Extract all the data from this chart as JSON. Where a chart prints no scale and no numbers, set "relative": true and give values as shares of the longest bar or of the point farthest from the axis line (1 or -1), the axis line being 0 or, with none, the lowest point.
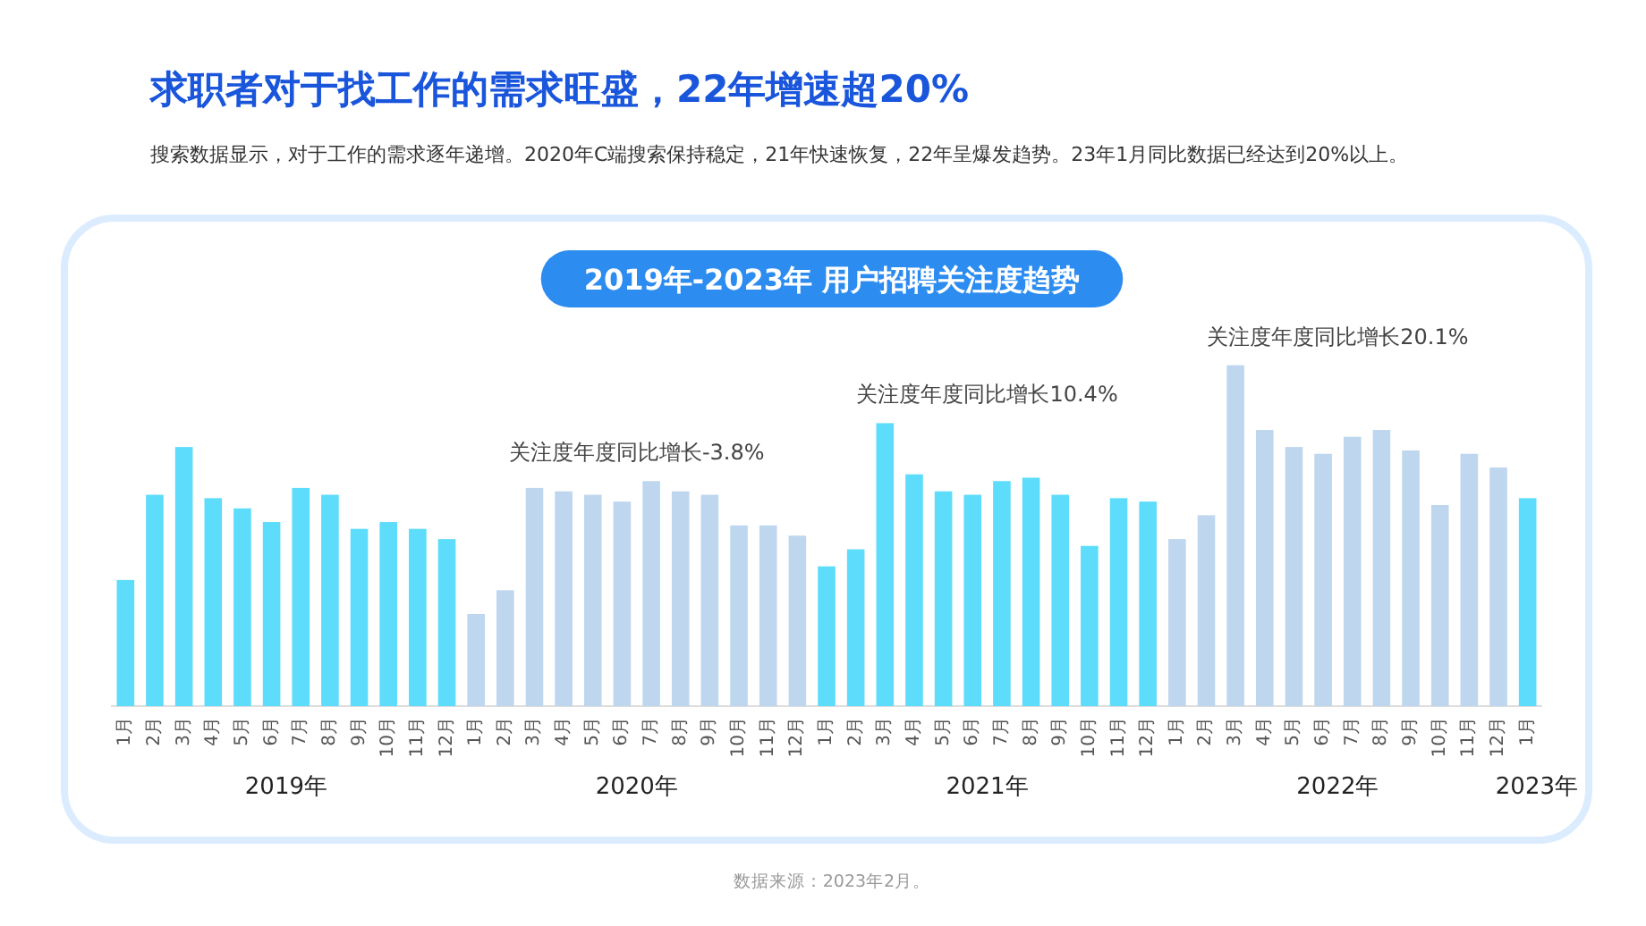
{
  "chart_data": {
    "type": "bar",
    "relative": true,
    "title": "求职者对于找工作的需求旺盛，22年增速超20%",
    "subtitle": "搜索数据显示，对于工作的需求逐年递增。2020年C端搜索保持稳定，21年快速恢复，22年呈爆发趋势。23年1月同比数据已经达到20%以上。",
    "annotations": [
      "2019年-2023年 用户招聘关注度趋势",
      "关注度年度同比增长-3.8%",
      "关注度年度同比增长10.4%",
      "关注度年度同比增长20.1%",
      "2019年",
      "2020年",
      "2021年",
      "2022年",
      "2023年",
      "数据来源：2023年2月。"
    ],
    "categories": [
      "1月",
      "2月",
      "3月",
      "4月",
      "5月",
      "6月",
      "7月",
      "8月",
      "9月",
      "10月",
      "11月",
      "12月",
      "1月",
      "2月",
      "3月",
      "4月",
      "5月",
      "6月",
      "7月",
      "8月",
      "9月",
      "10月",
      "11月",
      "12月",
      "1月",
      "2月",
      "3月",
      "4月",
      "5月",
      "6月",
      "7月",
      "8月",
      "9月",
      "10月",
      "11月",
      "12月",
      "1月",
      "2月",
      "3月",
      "4月",
      "5月",
      "6月",
      "7月",
      "8月",
      "9月",
      "10月",
      "11月",
      "12月",
      "1月"
    ],
    "values": [
      0.37,
      0.62,
      0.76,
      0.61,
      0.58,
      0.54,
      0.64,
      0.62,
      0.52,
      0.54,
      0.52,
      0.49,
      0.27,
      0.34,
      0.64,
      0.63,
      0.62,
      0.6,
      0.66,
      0.63,
      0.62,
      0.53,
      0.53,
      0.5,
      0.41,
      0.46,
      0.83,
      0.68,
      0.63,
      0.62,
      0.66,
      0.67,
      0.62,
      0.47,
      0.61,
      0.6,
      0.49,
      0.56,
      1,
      0.81,
      0.76,
      0.74,
      0.79,
      0.81,
      0.75,
      0.59,
      0.74,
      0.7,
      0.61
    ],
    "colors": [
      "#5ddcfb",
      "#5ddcfb",
      "#5ddcfb",
      "#5ddcfb",
      "#5ddcfb",
      "#5ddcfb",
      "#5ddcfb",
      "#5ddcfb",
      "#5ddcfb",
      "#5ddcfb",
      "#5ddcfb",
      "#5ddcfb",
      "#bed6ee",
      "#bed6ee",
      "#bed6ee",
      "#bed6ee",
      "#bed6ee",
      "#bed6ee",
      "#bed6ee",
      "#bed6ee",
      "#bed6ee",
      "#bed6ee",
      "#bed6ee",
      "#bed6ee",
      "#5ddcfb",
      "#5ddcfb",
      "#5ddcfb",
      "#5ddcfb",
      "#5ddcfb",
      "#5ddcfb",
      "#5ddcfb",
      "#5ddcfb",
      "#5ddcfb",
      "#5ddcfb",
      "#5ddcfb",
      "#5ddcfb",
      "#bed6ee",
      "#bed6ee",
      "#bed6ee",
      "#bed6ee",
      "#bed6ee",
      "#bed6ee",
      "#bed6ee",
      "#bed6ee",
      "#bed6ee",
      "#bed6ee",
      "#bed6ee",
      "#bed6ee",
      "#5ddcfb"
    ]
  }
}
